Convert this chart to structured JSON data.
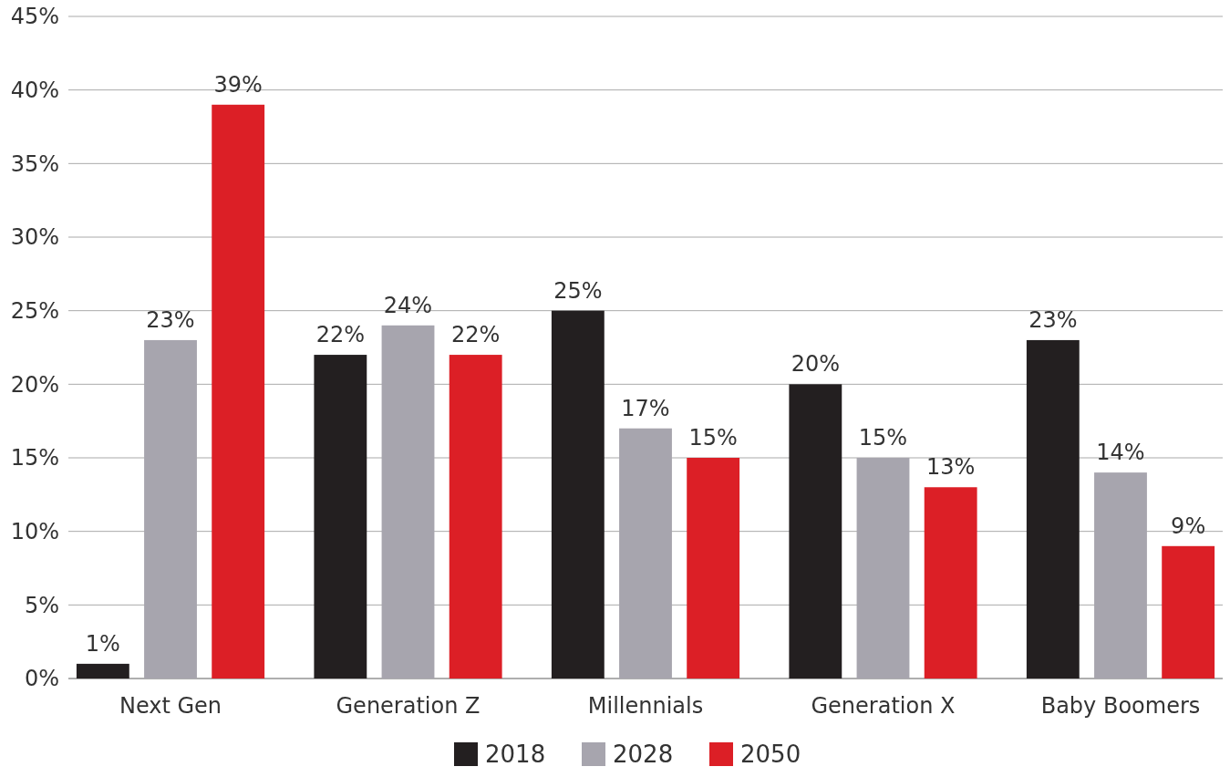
{
  "chart_data": {
    "type": "bar",
    "categories": [
      "Next Gen",
      "Generation Z",
      "Millennials",
      "Generation X",
      "Baby Boomers"
    ],
    "series": [
      {
        "name": "2018",
        "color": "#231f20",
        "values": [
          1,
          22,
          25,
          20,
          23
        ],
        "value_labels": [
          "1%",
          "22%",
          "25%",
          "20%",
          "23%"
        ]
      },
      {
        "name": "2028",
        "color": "#a7a5ae",
        "values": [
          23,
          24,
          17,
          15,
          14
        ],
        "value_labels": [
          "23%",
          "24%",
          "17%",
          "15%",
          "14%"
        ]
      },
      {
        "name": "2050",
        "color": "#dc1f26",
        "values": [
          39,
          22,
          15,
          13,
          9
        ],
        "value_labels": [
          "39%",
          "22%",
          "15%",
          "13%",
          "9%"
        ]
      }
    ],
    "ylim": [
      0,
      45
    ],
    "yticks": [
      {
        "value": 0,
        "label": "0%"
      },
      {
        "value": 5,
        "label": "5%"
      },
      {
        "value": 10,
        "label": "10%"
      },
      {
        "value": 15,
        "label": "15%"
      },
      {
        "value": 20,
        "label": "20%"
      },
      {
        "value": 25,
        "label": "25%"
      },
      {
        "value": 30,
        "label": "30%"
      },
      {
        "value": 35,
        "label": "35%"
      },
      {
        "value": 40,
        "label": "40%"
      },
      {
        "value": 45,
        "label": "45%"
      }
    ],
    "grid": "y",
    "legend": "bottom"
  }
}
